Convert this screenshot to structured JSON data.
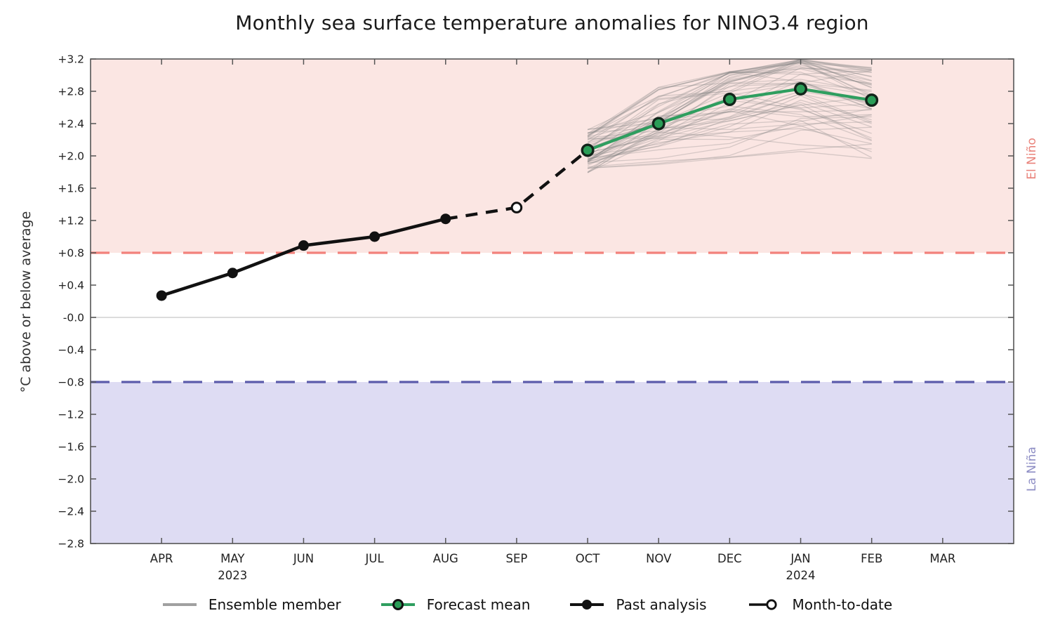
{
  "chart_data": {
    "type": "line",
    "title": "Monthly sea surface temperature anomalies for NINO3.4 region",
    "ylabel": "°C above or below average",
    "ylim": [
      -2.8,
      3.2
    ],
    "grid": false,
    "legend_position": "bottom",
    "yticks": [
      {
        "label": "+3.2",
        "value": 3.2
      },
      {
        "label": "+2.8",
        "value": 2.8
      },
      {
        "label": "+2.4",
        "value": 2.4
      },
      {
        "label": "+2.0",
        "value": 2.0
      },
      {
        "label": "+1.6",
        "value": 1.6
      },
      {
        "label": "+1.2",
        "value": 1.2
      },
      {
        "label": "+0.8",
        "value": 0.8
      },
      {
        "label": "+0.4",
        "value": 0.4
      },
      {
        "label": "-0.0",
        "value": 0.0
      },
      {
        "label": "−0.4",
        "value": -0.4
      },
      {
        "label": "−0.8",
        "value": -0.8
      },
      {
        "label": "−1.2",
        "value": -1.2
      },
      {
        "label": "−1.6",
        "value": -1.6
      },
      {
        "label": "−2.0",
        "value": -2.0
      },
      {
        "label": "−2.4",
        "value": -2.4
      },
      {
        "label": "−2.8",
        "value": -2.8
      }
    ],
    "categories": [
      "APR",
      "MAY",
      "JUN",
      "JUL",
      "AUG",
      "SEP",
      "OCT",
      "NOV",
      "DEC",
      "JAN",
      "FEB",
      "MAR"
    ],
    "year_labels": [
      {
        "month": "MAY",
        "year": "2023"
      },
      {
        "month": "JAN",
        "year": "2024"
      }
    ],
    "bands": {
      "elnino": {
        "from": 0.8,
        "to": 3.2,
        "fill": "#fbe6e3",
        "threshold": 0.8,
        "line_color": "#f2817b",
        "label": "El Niño",
        "label_color": "#e9837b"
      },
      "lanina": {
        "from": -2.8,
        "to": -0.8,
        "fill": "#dedcf3",
        "threshold": -0.8,
        "line_color": "#5c5cab",
        "label": "La Niña",
        "label_color": "#8d8dc4"
      }
    },
    "zero_line": {
      "value": 0.0,
      "color": "#dcdcdc"
    },
    "series": {
      "past_analysis": {
        "label": "Past analysis",
        "color": "#111111",
        "points": [
          {
            "month": "APR",
            "value": 0.27
          },
          {
            "month": "MAY",
            "value": 0.55
          },
          {
            "month": "JUN",
            "value": 0.89
          },
          {
            "month": "JUL",
            "value": 1.0
          },
          {
            "month": "AUG",
            "value": 1.22
          }
        ]
      },
      "month_to_date": {
        "label": "Month-to-date",
        "color": "#111111",
        "fill": "#ffffff",
        "points": [
          {
            "month": "SEP",
            "value": 1.36
          }
        ]
      },
      "dashed_connection": {
        "points": [
          {
            "month": "AUG",
            "value": 1.22
          },
          {
            "month": "SEP",
            "value": 1.36
          },
          {
            "month": "OCT",
            "value": 2.07
          }
        ]
      },
      "forecast_mean": {
        "label": "Forecast mean",
        "color": "#2f9e5f",
        "marker_fill": "#2a9d57",
        "marker_edge": "#12241a",
        "points": [
          {
            "month": "OCT",
            "value": 2.07
          },
          {
            "month": "NOV",
            "value": 2.4
          },
          {
            "month": "DEC",
            "value": 2.7
          },
          {
            "month": "JAN",
            "value": 2.83
          },
          {
            "month": "FEB",
            "value": 2.69
          }
        ]
      },
      "ensemble": {
        "label": "Ensemble member",
        "color": "#808080",
        "opacity": 0.3,
        "count": 56,
        "envelope": [
          {
            "month": "OCT",
            "min": 1.78,
            "max": 2.33
          },
          {
            "month": "NOV",
            "min": 1.88,
            "max": 2.86
          },
          {
            "month": "DEC",
            "min": 1.98,
            "max": 3.06
          },
          {
            "month": "JAN",
            "min": 2.04,
            "max": 3.2
          },
          {
            "month": "FEB",
            "min": 1.94,
            "max": 3.1
          }
        ]
      }
    }
  },
  "legend": {
    "items": [
      {
        "key": "ensemble",
        "label": "Ensemble member"
      },
      {
        "key": "forecast_mean",
        "label": "Forecast mean"
      },
      {
        "key": "past_analysis",
        "label": "Past analysis"
      },
      {
        "key": "month_to_date",
        "label": "Month-to-date"
      }
    ]
  }
}
